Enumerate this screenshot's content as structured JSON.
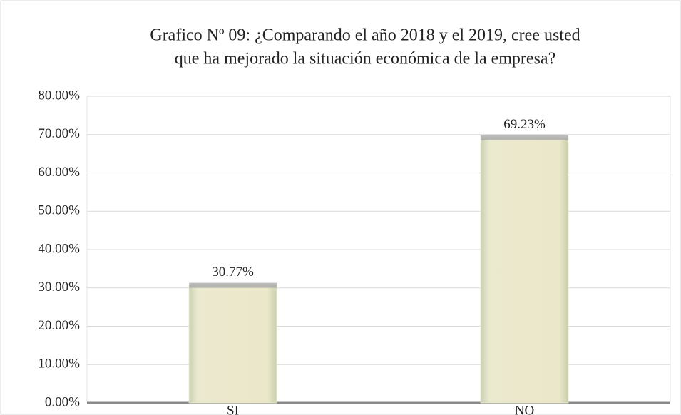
{
  "chart_data": {
    "type": "bar",
    "title": [
      "Grafico Nº 09: ¿Comparando el año 2018 y el 2019, cree usted",
      "que ha mejorado la situación económica de la empresa?"
    ],
    "categories": [
      "SI",
      "NO"
    ],
    "values": [
      30.77,
      69.23
    ],
    "value_labels": [
      "30.77%",
      "69.23%"
    ],
    "color": "#e7e5c6",
    "ylim": [
      0,
      80
    ],
    "yticks": [
      {
        "value": 0,
        "label": "0.00%"
      },
      {
        "value": 10,
        "label": "10.00%"
      },
      {
        "value": 20,
        "label": "20.00%"
      },
      {
        "value": 30,
        "label": "30.00%"
      },
      {
        "value": 40,
        "label": "40.00%"
      },
      {
        "value": 50,
        "label": "50.00%"
      },
      {
        "value": 60,
        "label": "60.00%"
      },
      {
        "value": 70,
        "label": "70.00%"
      },
      {
        "value": 80,
        "label": "80.00%"
      }
    ],
    "grid": true
  }
}
